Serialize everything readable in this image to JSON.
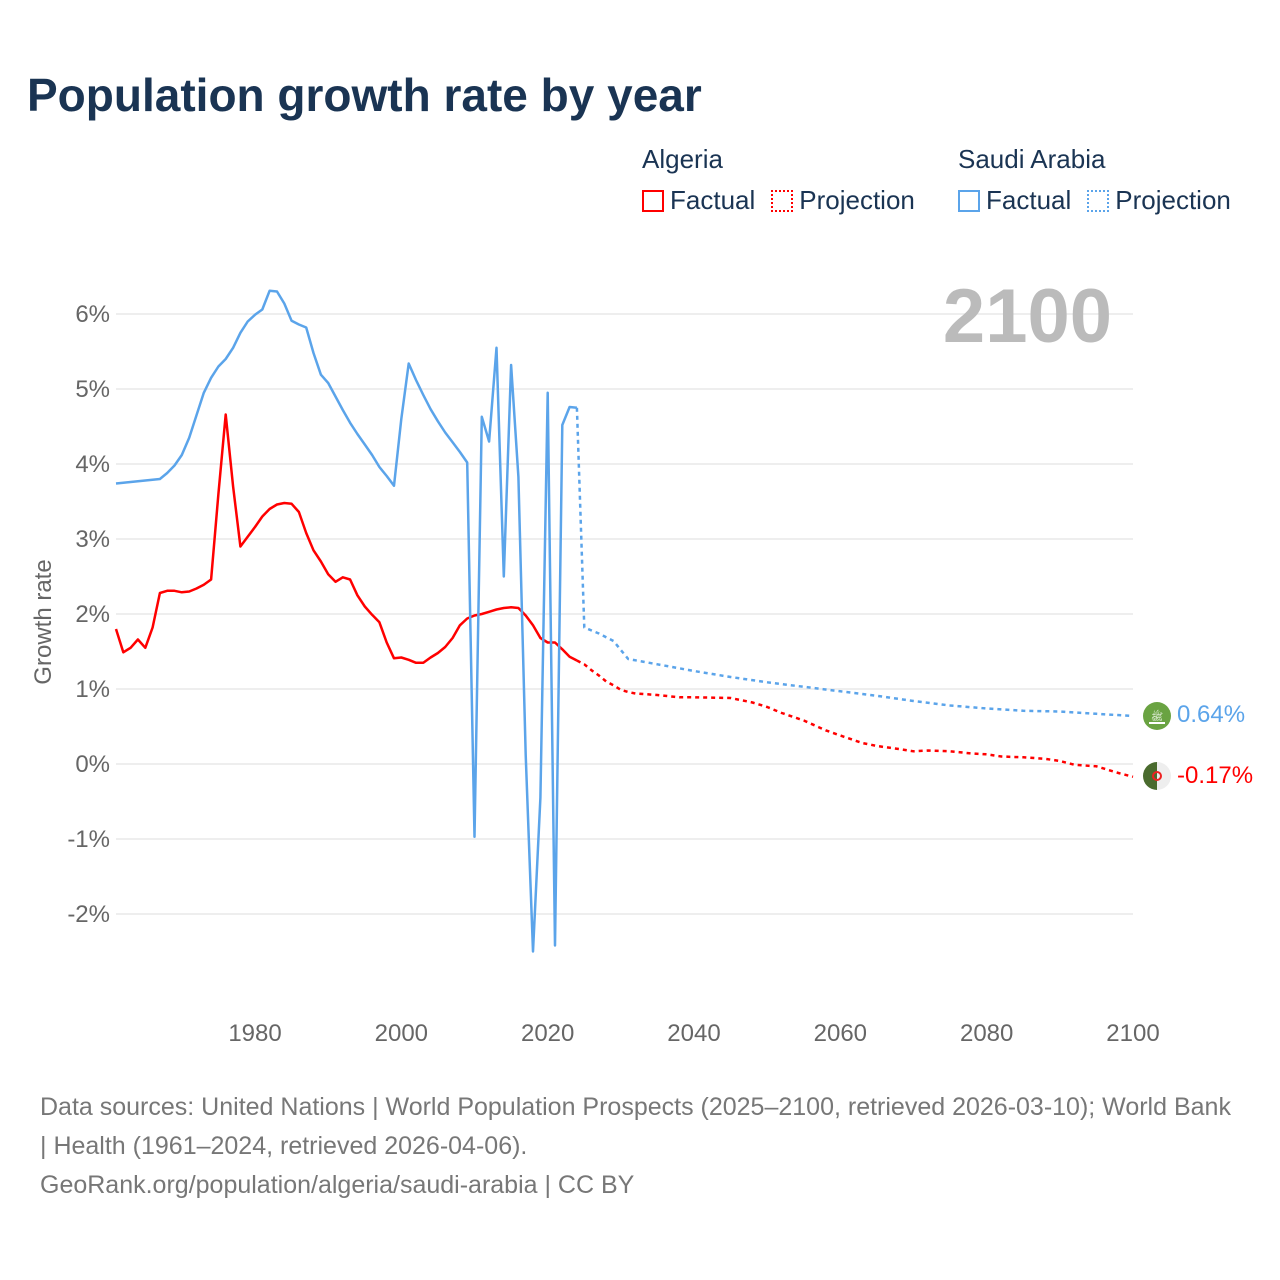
{
  "title": "Population growth rate by year",
  "legend": {
    "groups": [
      {
        "name": "Algeria",
        "factual": "Factual",
        "projection": "Projection",
        "color": "#ff0000"
      },
      {
        "name": "Saudi Arabia",
        "factual": "Factual",
        "projection": "Projection",
        "color": "#5ba4ea"
      }
    ]
  },
  "year_label": "2100",
  "end_labels": {
    "saudi": "0.64%",
    "algeria": "-0.17%"
  },
  "flags": {
    "saudi": "saudi-arabia-flag",
    "algeria": "algeria-flag"
  },
  "footer": {
    "line1": "Data sources: United Nations | World Population Prospects (2025–2100, retrieved 2026-03-10); World Bank | Health (1961–2024, retrieved 2026-04-06).",
    "line2": "GeoRank.org/population/algeria/saudi-arabia | CC BY"
  },
  "chart_data": {
    "type": "line",
    "title": "Population growth rate by year",
    "xlabel": "",
    "ylabel": "Growth rate",
    "xlim": [
      1961,
      2100
    ],
    "ylim": [
      -3.2,
      6.8
    ],
    "x_ticks": [
      1980,
      2000,
      2020,
      2040,
      2060,
      2080,
      2100
    ],
    "x_tick_labels": [
      "1980",
      "2000",
      "2020",
      "2040",
      "2060",
      "2080",
      "2100"
    ],
    "y_ticks": [
      -2,
      -1,
      0,
      1,
      2,
      3,
      4,
      5,
      6
    ],
    "y_tick_labels": [
      "-2%",
      "-1%",
      "0%",
      "1%",
      "2%",
      "3%",
      "4%",
      "5%",
      "6%"
    ],
    "grid": true,
    "legend_position": "top-right",
    "series": [
      {
        "name": "Algeria Factual",
        "color": "#ff0000",
        "style": "solid",
        "x": [
          1961,
          1962,
          1963,
          1964,
          1965,
          1966,
          1967,
          1968,
          1969,
          1970,
          1971,
          1972,
          1973,
          1974,
          1975,
          1976,
          1977,
          1978,
          1979,
          1980,
          1981,
          1982,
          1983,
          1984,
          1985,
          1986,
          1987,
          1988,
          1989,
          1990,
          1991,
          1992,
          1993,
          1994,
          1995,
          1996,
          1997,
          1998,
          1999,
          2000,
          2001,
          2002,
          2003,
          2004,
          2005,
          2006,
          2007,
          2008,
          2009,
          2010,
          2011,
          2012,
          2013,
          2014,
          2015,
          2016,
          2017,
          2018,
          2019,
          2020,
          2021,
          2022,
          2023,
          2024
        ],
        "y": [
          1.8,
          1.49,
          1.55,
          1.66,
          1.55,
          1.82,
          2.28,
          2.31,
          2.31,
          2.29,
          2.3,
          2.34,
          2.39,
          2.46,
          3.6,
          4.66,
          3.7,
          2.9,
          3.03,
          3.16,
          3.3,
          3.4,
          3.46,
          3.48,
          3.47,
          3.36,
          3.08,
          2.85,
          2.7,
          2.53,
          2.43,
          2.49,
          2.46,
          2.25,
          2.1,
          1.99,
          1.89,
          1.62,
          1.41,
          1.42,
          1.39,
          1.35,
          1.35,
          1.42,
          1.48,
          1.56,
          1.68,
          1.85,
          1.94,
          1.98,
          2.0,
          2.03,
          2.06,
          2.08,
          2.09,
          2.08,
          1.98,
          1.85,
          1.68,
          1.62,
          1.62,
          1.53,
          1.43,
          1.38
        ]
      },
      {
        "name": "Algeria Projection",
        "color": "#ff0000",
        "style": "dotted",
        "x": [
          2024,
          2025,
          2026,
          2027,
          2028,
          2029,
          2030,
          2031,
          2032,
          2035,
          2038,
          2040,
          2045,
          2048,
          2050,
          2052,
          2055,
          2058,
          2060,
          2063,
          2065,
          2068,
          2070,
          2072,
          2075,
          2078,
          2080,
          2082,
          2085,
          2088,
          2090,
          2092,
          2095,
          2098,
          2100
        ],
        "y": [
          1.38,
          1.33,
          1.25,
          1.18,
          1.1,
          1.05,
          0.99,
          0.96,
          0.94,
          0.92,
          0.89,
          0.89,
          0.88,
          0.82,
          0.76,
          0.68,
          0.58,
          0.45,
          0.38,
          0.28,
          0.24,
          0.2,
          0.17,
          0.18,
          0.17,
          0.14,
          0.13,
          0.1,
          0.09,
          0.07,
          0.04,
          -0.01,
          -0.03,
          -0.12,
          -0.17
        ]
      },
      {
        "name": "Saudi Arabia Factual",
        "color": "#5ba4ea",
        "style": "solid",
        "x": [
          1961,
          1962,
          1963,
          1964,
          1965,
          1966,
          1967,
          1968,
          1969,
          1970,
          1971,
          1972,
          1973,
          1974,
          1975,
          1976,
          1977,
          1978,
          1979,
          1980,
          1981,
          1982,
          1983,
          1984,
          1985,
          1986,
          1987,
          1988,
          1989,
          1990,
          1991,
          1992,
          1993,
          1994,
          1995,
          1996,
          1997,
          1998,
          1999,
          2000,
          2001,
          2002,
          2003,
          2004,
          2005,
          2006,
          2007,
          2008,
          2009,
          2010,
          2011,
          2012,
          2013,
          2014,
          2015,
          2016,
          2017,
          2018,
          2019,
          2020,
          2021,
          2022,
          2023,
          2024
        ],
        "y": [
          3.74,
          3.75,
          3.76,
          3.77,
          3.78,
          3.79,
          3.8,
          3.88,
          3.98,
          4.12,
          4.35,
          4.65,
          4.95,
          5.15,
          5.3,
          5.4,
          5.55,
          5.75,
          5.9,
          5.99,
          6.06,
          6.31,
          6.3,
          6.14,
          5.91,
          5.86,
          5.82,
          5.48,
          5.19,
          5.08,
          4.9,
          4.72,
          4.55,
          4.4,
          4.26,
          4.12,
          3.96,
          3.84,
          3.71,
          4.6,
          5.34,
          5.12,
          4.92,
          4.73,
          4.57,
          4.42,
          4.29,
          4.16,
          4.02,
          -0.97,
          4.63,
          4.3,
          5.55,
          2.5,
          5.32,
          3.83,
          0.12,
          -2.5,
          -0.45,
          4.95,
          -2.42,
          4.52,
          4.76,
          4.75
        ]
      },
      {
        "name": "Saudi Arabia Projection",
        "color": "#5ba4ea",
        "style": "dotted",
        "x": [
          2024,
          2025,
          2027,
          2029,
          2031,
          2035,
          2040,
          2045,
          2050,
          2055,
          2060,
          2065,
          2070,
          2075,
          2080,
          2085,
          2090,
          2095,
          2100
        ],
        "y": [
          4.75,
          1.82,
          1.74,
          1.64,
          1.4,
          1.33,
          1.24,
          1.16,
          1.09,
          1.03,
          0.97,
          0.91,
          0.84,
          0.78,
          0.74,
          0.71,
          0.7,
          0.67,
          0.64
        ]
      }
    ]
  }
}
